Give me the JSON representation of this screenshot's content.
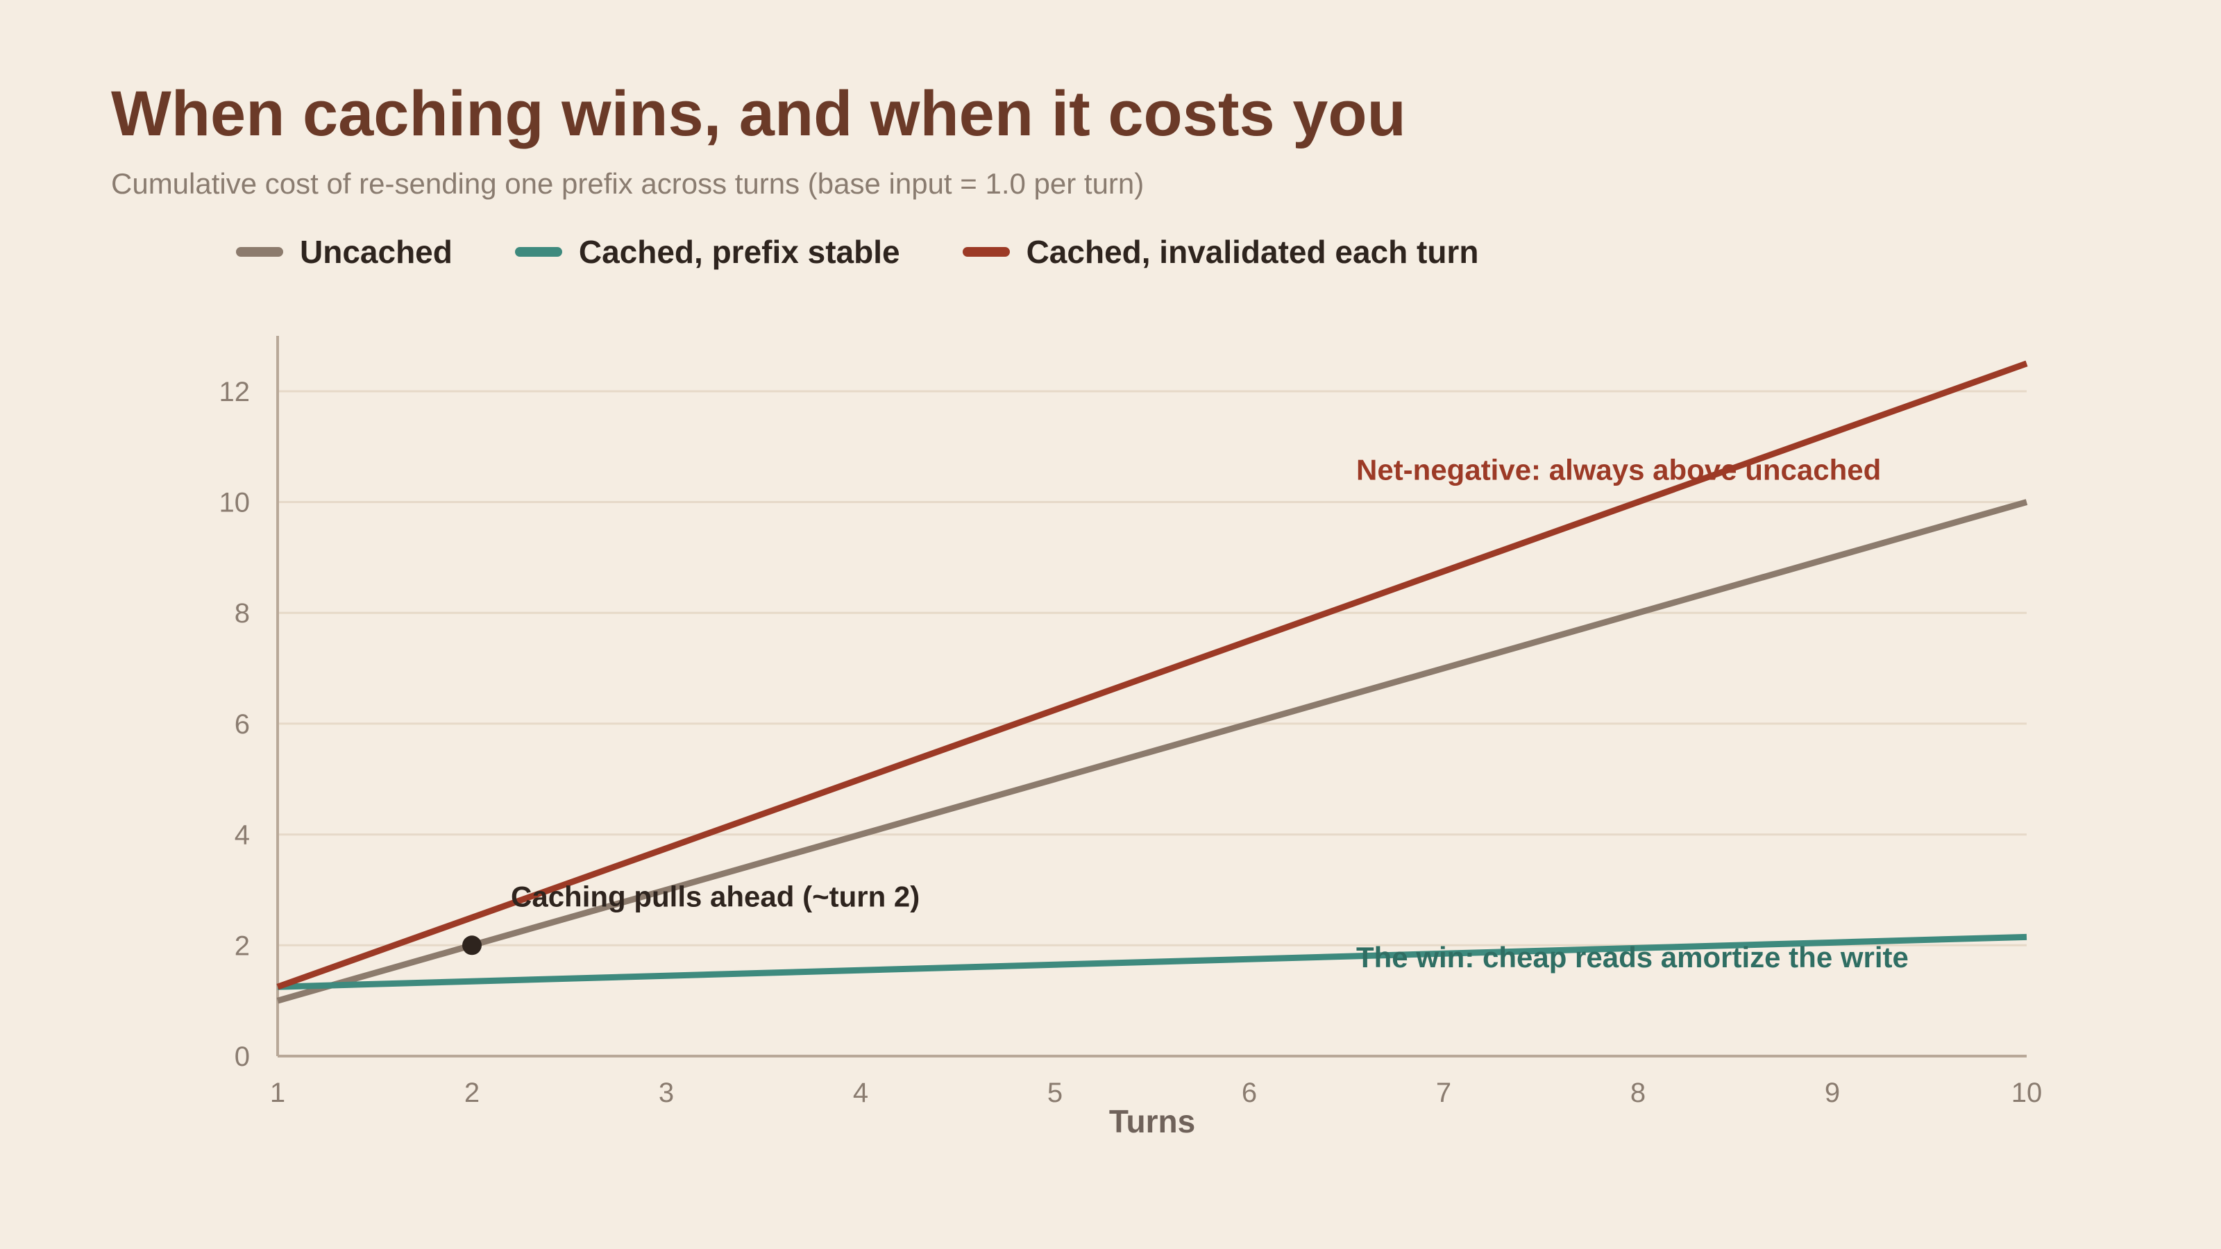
{
  "chart_data": {
    "type": "line",
    "title": "When caching wins, and when it costs you",
    "subtitle": "Cumulative cost of re-sending one prefix across turns (base input = 1.0 per turn)",
    "xlabel": "Turns",
    "ylabel": "",
    "x": [
      1,
      2,
      3,
      4,
      5,
      6,
      7,
      8,
      9,
      10
    ],
    "xlim": [
      1,
      10
    ],
    "ylim": [
      0,
      13
    ],
    "yticks": [
      0,
      2,
      4,
      6,
      8,
      10,
      12
    ],
    "grid": true,
    "legend_position": "top-left",
    "series": [
      {
        "name": "Uncached",
        "color": "#8c7b6d",
        "values": [
          1.0,
          2.0,
          3.0,
          4.0,
          5.0,
          6.0,
          7.0,
          8.0,
          9.0,
          10.0
        ]
      },
      {
        "name": "Cached, prefix stable",
        "color": "#3e8a7e",
        "values": [
          1.25,
          1.35,
          1.45,
          1.55,
          1.65,
          1.75,
          1.85,
          1.95,
          2.05,
          2.15
        ]
      },
      {
        "name": "Cached, invalidated each turn",
        "color": "#9c3a26",
        "values": [
          1.25,
          2.5,
          3.75,
          5.0,
          6.25,
          7.5,
          8.75,
          10.0,
          11.25,
          12.5
        ]
      }
    ],
    "marker": {
      "x": 2,
      "y": 2.0,
      "color": "#2e241e"
    },
    "annotations": [
      {
        "text": "Caching pulls ahead (~turn 2)",
        "x": 2.2,
        "y": 2.7,
        "color": "#2e241e"
      },
      {
        "text": "Net-negative: always above uncached",
        "x": 6.55,
        "y": 10.4,
        "color": "#9c3a26"
      },
      {
        "text": "The win: cheap reads amortize the write",
        "x": 6.55,
        "y": 1.6,
        "color": "#2f6e63"
      }
    ]
  }
}
